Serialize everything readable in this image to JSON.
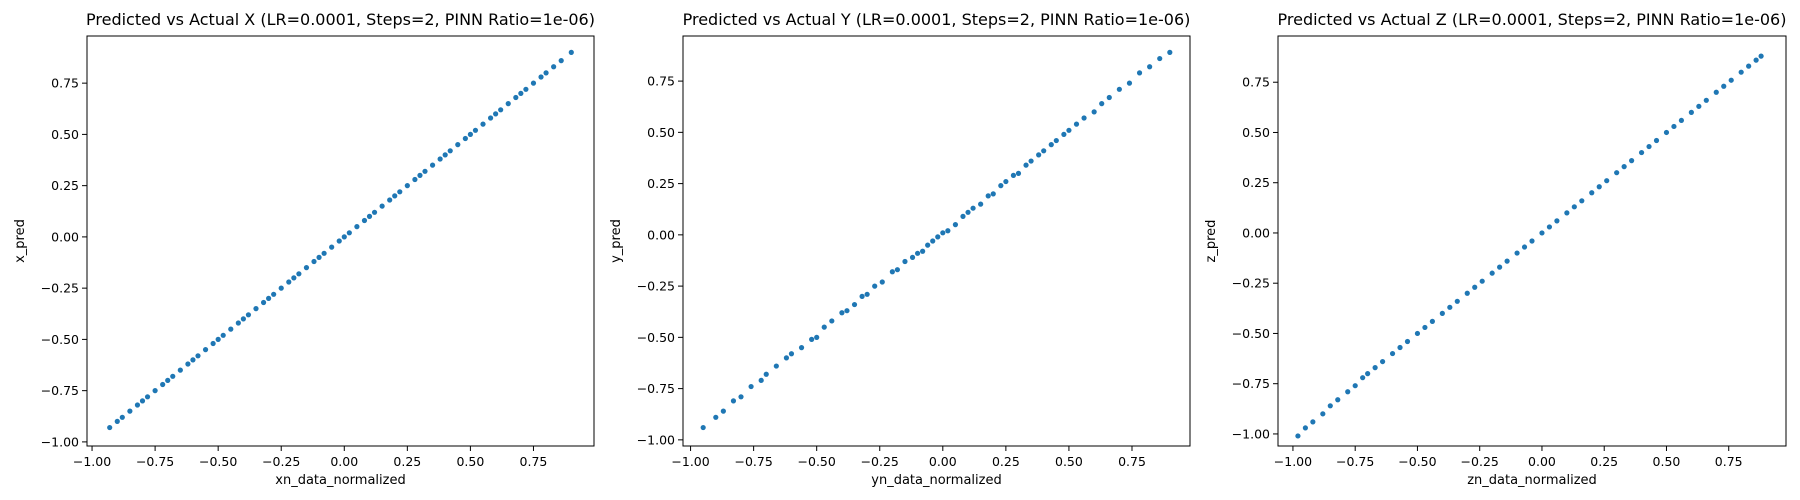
{
  "chart_data": [
    {
      "type": "scatter",
      "title": "Predicted vs Actual X (LR=0.0001, Steps=2, PINN Ratio=1e-06)",
      "xlabel": "xn_data_normalized",
      "ylabel": "x_pred",
      "xlim": [
        -1.02,
        0.99
      ],
      "ylim": [
        -1.02,
        0.98
      ],
      "xticks": [
        -1.0,
        -0.75,
        -0.5,
        -0.25,
        0.0,
        0.25,
        0.5,
        0.75
      ],
      "xtick_labels": [
        "−1.00",
        "−0.75",
        "−0.50",
        "−0.25",
        "0.00",
        "0.25",
        "0.50",
        "0.75"
      ],
      "yticks": [
        -1.0,
        -0.75,
        -0.5,
        -0.25,
        0.0,
        0.25,
        0.5,
        0.75
      ],
      "ytick_labels": [
        "−1.00",
        "−0.75",
        "−0.50",
        "−0.25",
        "0.00",
        "0.25",
        "0.50",
        "0.75"
      ],
      "color": "#1f77b4",
      "series": [
        {
          "points": [
            [
              -0.93,
              -0.93
            ],
            [
              -0.9,
              -0.9
            ],
            [
              -0.88,
              -0.88
            ],
            [
              -0.85,
              -0.85
            ],
            [
              -0.82,
              -0.82
            ],
            [
              -0.8,
              -0.8
            ],
            [
              -0.78,
              -0.78
            ],
            [
              -0.75,
              -0.75
            ],
            [
              -0.72,
              -0.72
            ],
            [
              -0.7,
              -0.7
            ],
            [
              -0.68,
              -0.68
            ],
            [
              -0.65,
              -0.65
            ],
            [
              -0.62,
              -0.62
            ],
            [
              -0.6,
              -0.6
            ],
            [
              -0.58,
              -0.58
            ],
            [
              -0.55,
              -0.55
            ],
            [
              -0.52,
              -0.52
            ],
            [
              -0.5,
              -0.5
            ],
            [
              -0.48,
              -0.48
            ],
            [
              -0.45,
              -0.45
            ],
            [
              -0.42,
              -0.42
            ],
            [
              -0.4,
              -0.4
            ],
            [
              -0.38,
              -0.38
            ],
            [
              -0.35,
              -0.35
            ],
            [
              -0.32,
              -0.32
            ],
            [
              -0.3,
              -0.3
            ],
            [
              -0.28,
              -0.28
            ],
            [
              -0.25,
              -0.25
            ],
            [
              -0.22,
              -0.22
            ],
            [
              -0.2,
              -0.2
            ],
            [
              -0.18,
              -0.18
            ],
            [
              -0.15,
              -0.15
            ],
            [
              -0.12,
              -0.12
            ],
            [
              -0.1,
              -0.1
            ],
            [
              -0.08,
              -0.08
            ],
            [
              -0.05,
              -0.05
            ],
            [
              -0.02,
              -0.02
            ],
            [
              0.0,
              0.0
            ],
            [
              0.02,
              0.02
            ],
            [
              0.05,
              0.05
            ],
            [
              0.08,
              0.08
            ],
            [
              0.1,
              0.1
            ],
            [
              0.12,
              0.12
            ],
            [
              0.15,
              0.15
            ],
            [
              0.18,
              0.18
            ],
            [
              0.2,
              0.2
            ],
            [
              0.22,
              0.22
            ],
            [
              0.25,
              0.25
            ],
            [
              0.28,
              0.28
            ],
            [
              0.3,
              0.3
            ],
            [
              0.32,
              0.32
            ],
            [
              0.35,
              0.35
            ],
            [
              0.38,
              0.38
            ],
            [
              0.4,
              0.4
            ],
            [
              0.42,
              0.42
            ],
            [
              0.45,
              0.45
            ],
            [
              0.48,
              0.48
            ],
            [
              0.5,
              0.5
            ],
            [
              0.52,
              0.52
            ],
            [
              0.55,
              0.55
            ],
            [
              0.58,
              0.58
            ],
            [
              0.6,
              0.6
            ],
            [
              0.62,
              0.62
            ],
            [
              0.65,
              0.65
            ],
            [
              0.68,
              0.68
            ],
            [
              0.7,
              0.7
            ],
            [
              0.72,
              0.72
            ],
            [
              0.75,
              0.75
            ],
            [
              0.78,
              0.78
            ],
            [
              0.8,
              0.8
            ],
            [
              0.83,
              0.83
            ],
            [
              0.86,
              0.86
            ],
            [
              0.9,
              0.9
            ]
          ]
        }
      ]
    },
    {
      "type": "scatter",
      "title": "Predicted vs Actual Y (LR=0.0001, Steps=2, PINN Ratio=1e-06)",
      "xlabel": "yn_data_normalized",
      "ylabel": "y_pred",
      "xlim": [
        -1.03,
        0.98
      ],
      "ylim": [
        -1.03,
        0.97
      ],
      "xticks": [
        -1.0,
        -0.75,
        -0.5,
        -0.25,
        0.0,
        0.25,
        0.5,
        0.75
      ],
      "xtick_labels": [
        "−1.00",
        "−0.75",
        "−0.50",
        "−0.25",
        "0.00",
        "0.25",
        "0.50",
        "0.75"
      ],
      "yticks": [
        -1.0,
        -0.75,
        -0.5,
        -0.25,
        0.0,
        0.25,
        0.5,
        0.75
      ],
      "ytick_labels": [
        "−1.00",
        "−0.75",
        "−0.50",
        "−0.25",
        "0.00",
        "0.25",
        "0.50",
        "0.75"
      ],
      "color": "#1f77b4",
      "series": [
        {
          "points": [
            [
              -0.95,
              -0.94
            ],
            [
              -0.9,
              -0.89
            ],
            [
              -0.87,
              -0.86
            ],
            [
              -0.83,
              -0.81
            ],
            [
              -0.8,
              -0.79
            ],
            [
              -0.76,
              -0.74
            ],
            [
              -0.72,
              -0.71
            ],
            [
              -0.7,
              -0.68
            ],
            [
              -0.66,
              -0.64
            ],
            [
              -0.62,
              -0.6
            ],
            [
              -0.6,
              -0.58
            ],
            [
              -0.56,
              -0.55
            ],
            [
              -0.52,
              -0.51
            ],
            [
              -0.5,
              -0.5
            ],
            [
              -0.47,
              -0.45
            ],
            [
              -0.44,
              -0.42
            ],
            [
              -0.4,
              -0.38
            ],
            [
              -0.38,
              -0.37
            ],
            [
              -0.35,
              -0.34
            ],
            [
              -0.32,
              -0.3
            ],
            [
              -0.3,
              -0.29
            ],
            [
              -0.27,
              -0.25
            ],
            [
              -0.24,
              -0.23
            ],
            [
              -0.2,
              -0.18
            ],
            [
              -0.18,
              -0.17
            ],
            [
              -0.15,
              -0.13
            ],
            [
              -0.12,
              -0.11
            ],
            [
              -0.1,
              -0.09
            ],
            [
              -0.08,
              -0.08
            ],
            [
              -0.06,
              -0.05
            ],
            [
              -0.04,
              -0.03
            ],
            [
              -0.02,
              -0.01
            ],
            [
              0.0,
              0.01
            ],
            [
              0.02,
              0.02
            ],
            [
              0.05,
              0.05
            ],
            [
              0.08,
              0.09
            ],
            [
              0.1,
              0.11
            ],
            [
              0.12,
              0.13
            ],
            [
              0.15,
              0.15
            ],
            [
              0.18,
              0.19
            ],
            [
              0.2,
              0.2
            ],
            [
              0.23,
              0.24
            ],
            [
              0.25,
              0.26
            ],
            [
              0.28,
              0.29
            ],
            [
              0.3,
              0.3
            ],
            [
              0.33,
              0.34
            ],
            [
              0.35,
              0.36
            ],
            [
              0.38,
              0.39
            ],
            [
              0.4,
              0.41
            ],
            [
              0.43,
              0.44
            ],
            [
              0.45,
              0.46
            ],
            [
              0.48,
              0.49
            ],
            [
              0.5,
              0.51
            ],
            [
              0.53,
              0.54
            ],
            [
              0.56,
              0.57
            ],
            [
              0.6,
              0.6
            ],
            [
              0.63,
              0.64
            ],
            [
              0.66,
              0.67
            ],
            [
              0.7,
              0.71
            ],
            [
              0.74,
              0.74
            ],
            [
              0.78,
              0.79
            ],
            [
              0.82,
              0.82
            ],
            [
              0.86,
              0.86
            ],
            [
              0.9,
              0.89
            ]
          ]
        }
      ]
    },
    {
      "type": "scatter",
      "title": "Predicted vs Actual Z (LR=0.0001, Steps=2, PINN Ratio=1e-06)",
      "xlabel": "zn_data_normalized",
      "ylabel": "z_pred",
      "xlim": [
        -1.06,
        0.98
      ],
      "ylim": [
        -1.06,
        0.98
      ],
      "xticks": [
        -1.0,
        -0.75,
        -0.5,
        -0.25,
        0.0,
        0.25,
        0.5,
        0.75
      ],
      "xtick_labels": [
        "−1.00",
        "−0.75",
        "−0.50",
        "−0.25",
        "0.00",
        "0.25",
        "0.50",
        "0.75"
      ],
      "yticks": [
        -1.0,
        -0.75,
        -0.5,
        -0.25,
        0.0,
        0.25,
        0.5,
        0.75
      ],
      "ytick_labels": [
        "−1.00",
        "−0.75",
        "−0.50",
        "−0.25",
        "0.00",
        "0.25",
        "0.50",
        "0.75"
      ],
      "color": "#1f77b4",
      "series": [
        {
          "points": [
            [
              -0.98,
              -1.01
            ],
            [
              -0.95,
              -0.97
            ],
            [
              -0.92,
              -0.94
            ],
            [
              -0.88,
              -0.9
            ],
            [
              -0.85,
              -0.86
            ],
            [
              -0.82,
              -0.83
            ],
            [
              -0.78,
              -0.79
            ],
            [
              -0.75,
              -0.76
            ],
            [
              -0.72,
              -0.72
            ],
            [
              -0.7,
              -0.7
            ],
            [
              -0.67,
              -0.67
            ],
            [
              -0.64,
              -0.64
            ],
            [
              -0.6,
              -0.6
            ],
            [
              -0.57,
              -0.57
            ],
            [
              -0.54,
              -0.54
            ],
            [
              -0.5,
              -0.5
            ],
            [
              -0.47,
              -0.47
            ],
            [
              -0.44,
              -0.44
            ],
            [
              -0.4,
              -0.4
            ],
            [
              -0.37,
              -0.37
            ],
            [
              -0.34,
              -0.34
            ],
            [
              -0.3,
              -0.3
            ],
            [
              -0.27,
              -0.27
            ],
            [
              -0.24,
              -0.24
            ],
            [
              -0.2,
              -0.2
            ],
            [
              -0.17,
              -0.17
            ],
            [
              -0.14,
              -0.14
            ],
            [
              -0.1,
              -0.1
            ],
            [
              -0.07,
              -0.07
            ],
            [
              -0.04,
              -0.04
            ],
            [
              0.0,
              0.0
            ],
            [
              0.03,
              0.03
            ],
            [
              0.06,
              0.06
            ],
            [
              0.1,
              0.1
            ],
            [
              0.13,
              0.13
            ],
            [
              0.16,
              0.16
            ],
            [
              0.2,
              0.2
            ],
            [
              0.23,
              0.23
            ],
            [
              0.26,
              0.26
            ],
            [
              0.3,
              0.3
            ],
            [
              0.33,
              0.33
            ],
            [
              0.36,
              0.36
            ],
            [
              0.4,
              0.4
            ],
            [
              0.43,
              0.43
            ],
            [
              0.46,
              0.46
            ],
            [
              0.5,
              0.5
            ],
            [
              0.53,
              0.53
            ],
            [
              0.56,
              0.56
            ],
            [
              0.6,
              0.6
            ],
            [
              0.63,
              0.63
            ],
            [
              0.66,
              0.66
            ],
            [
              0.7,
              0.7
            ],
            [
              0.73,
              0.73
            ],
            [
              0.76,
              0.76
            ],
            [
              0.8,
              0.8
            ],
            [
              0.83,
              0.83
            ],
            [
              0.86,
              0.86
            ],
            [
              0.88,
              0.88
            ]
          ]
        }
      ]
    }
  ]
}
